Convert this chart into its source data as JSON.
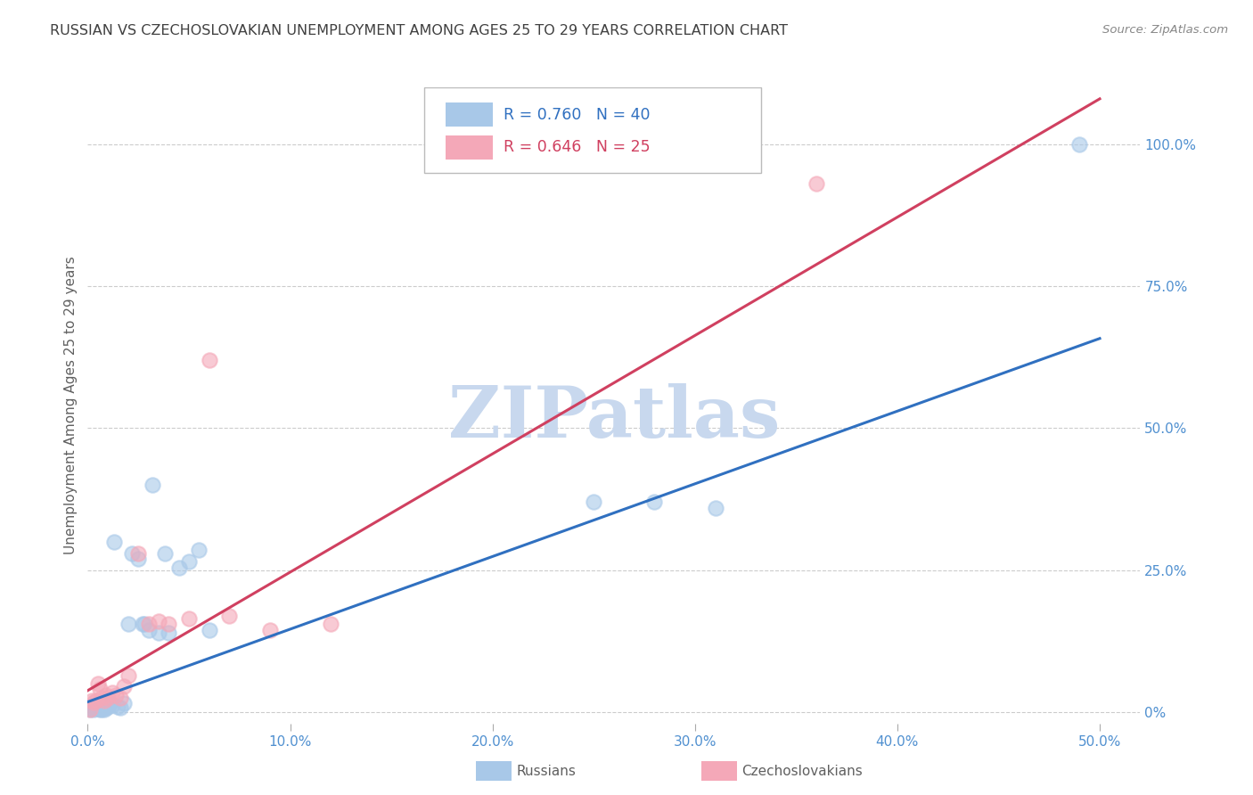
{
  "title": "RUSSIAN VS CZECHOSLOVAKIAN UNEMPLOYMENT AMONG AGES 25 TO 29 YEARS CORRELATION CHART",
  "source": "Source: ZipAtlas.com",
  "ylabel": "Unemployment Among Ages 25 to 29 years",
  "xlim": [
    0.0,
    0.52
  ],
  "ylim": [
    -0.02,
    1.1
  ],
  "xticks": [
    0.0,
    0.1,
    0.2,
    0.3,
    0.4,
    0.5
  ],
  "xticklabels": [
    "0.0%",
    "10.0%",
    "20.0%",
    "30.0%",
    "40.0%",
    "50.0%"
  ],
  "yticks_right": [
    0.0,
    0.25,
    0.5,
    0.75,
    1.0
  ],
  "yticklabels_right": [
    "0%",
    "25.0%",
    "50.0%",
    "75.0%",
    "100.0%"
  ],
  "blue_label": "Russians",
  "pink_label": "Czechoslovakians",
  "blue_color": "#A8C8E8",
  "pink_color": "#F4A8B8",
  "blue_line_color": "#3070C0",
  "pink_line_color": "#D04060",
  "watermark": "ZIPatlas",
  "watermark_color": "#C8D8EE",
  "background_color": "#FFFFFF",
  "grid_color": "#CCCCCC",
  "title_color": "#404040",
  "axis_label_color": "#606060",
  "tick_color": "#5090D0",
  "blue_scatter_x": [
    0.001,
    0.002,
    0.003,
    0.003,
    0.004,
    0.005,
    0.005,
    0.006,
    0.006,
    0.007,
    0.007,
    0.008,
    0.008,
    0.009,
    0.01,
    0.01,
    0.011,
    0.012,
    0.013,
    0.015,
    0.016,
    0.018,
    0.02,
    0.022,
    0.025,
    0.027,
    0.028,
    0.03,
    0.032,
    0.035,
    0.038,
    0.04,
    0.045,
    0.05,
    0.055,
    0.06,
    0.25,
    0.28,
    0.31,
    0.49
  ],
  "blue_scatter_y": [
    0.005,
    0.006,
    0.01,
    0.005,
    0.008,
    0.006,
    0.01,
    0.005,
    0.008,
    0.005,
    0.01,
    0.005,
    0.012,
    0.008,
    0.01,
    0.012,
    0.015,
    0.012,
    0.3,
    0.01,
    0.008,
    0.015,
    0.155,
    0.28,
    0.27,
    0.155,
    0.155,
    0.145,
    0.4,
    0.14,
    0.28,
    0.14,
    0.255,
    0.265,
    0.285,
    0.145,
    0.37,
    0.37,
    0.36,
    1.0
  ],
  "pink_scatter_x": [
    0.001,
    0.002,
    0.003,
    0.004,
    0.005,
    0.006,
    0.007,
    0.008,
    0.009,
    0.01,
    0.012,
    0.014,
    0.016,
    0.018,
    0.02,
    0.025,
    0.03,
    0.035,
    0.04,
    0.05,
    0.06,
    0.07,
    0.09,
    0.12,
    0.36
  ],
  "pink_scatter_y": [
    0.005,
    0.02,
    0.018,
    0.02,
    0.05,
    0.04,
    0.025,
    0.02,
    0.03,
    0.025,
    0.035,
    0.03,
    0.025,
    0.045,
    0.065,
    0.28,
    0.155,
    0.16,
    0.155,
    0.165,
    0.62,
    0.17,
    0.145,
    0.155,
    0.93
  ],
  "blue_trend_x": [
    0.0,
    0.5
  ],
  "blue_trend_y": [
    0.018,
    0.658
  ],
  "pink_trend_x": [
    0.0,
    0.5
  ],
  "pink_trend_y": [
    0.038,
    1.08
  ]
}
